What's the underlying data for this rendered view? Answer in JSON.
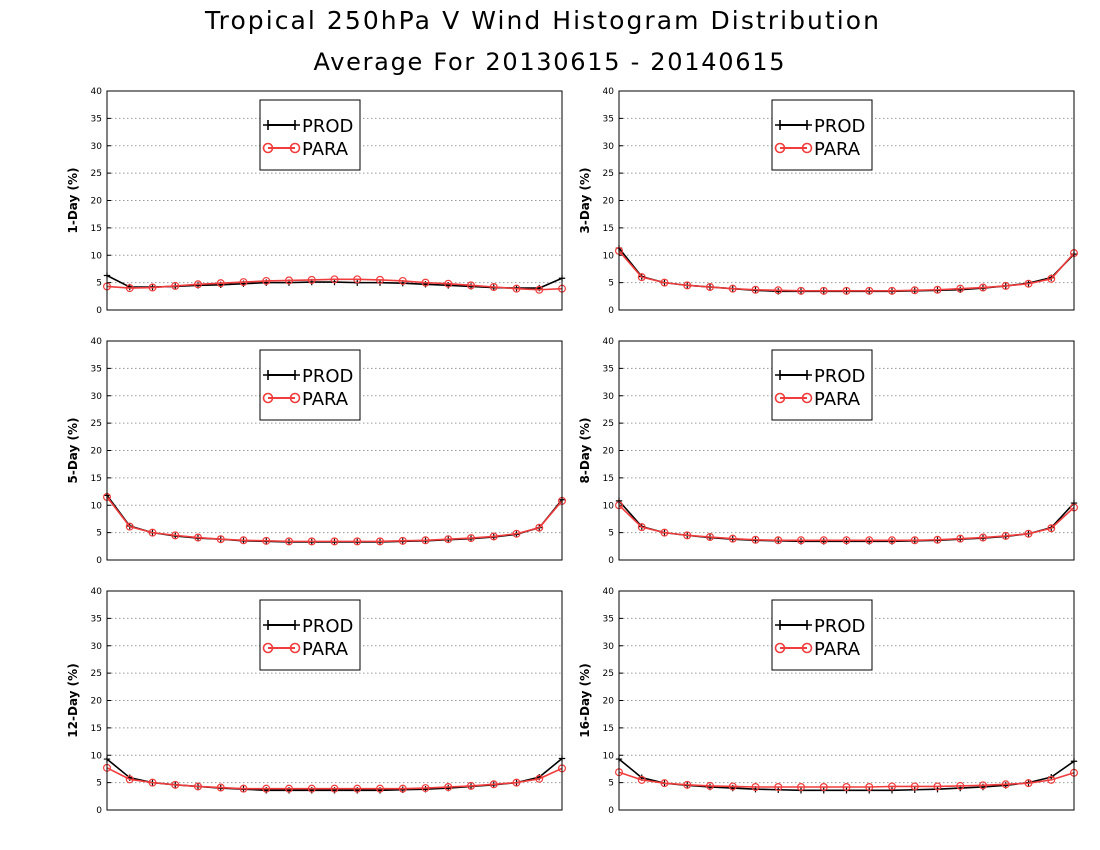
{
  "title": "Tropical 250hPa V Wind Histogram Distribution",
  "subtitle": "Average For 20130615 - 20140615",
  "colors": {
    "background": "#ffffff",
    "grid": "#9a9a9a",
    "frame": "#000000"
  },
  "chart_data": [
    {
      "type": "line",
      "ylabel": "1-Day (%)",
      "ylim": [
        0,
        40
      ],
      "yticks": [
        0,
        5,
        10,
        15,
        20,
        25,
        30,
        35,
        40
      ],
      "grid": true,
      "legend": "top-center",
      "series": [
        {
          "name": "PROD",
          "color": "#000000",
          "marker": "plus",
          "values": [
            6.3,
            4.2,
            4.2,
            4.3,
            4.5,
            4.6,
            4.8,
            5.0,
            5.0,
            5.1,
            5.1,
            5.0,
            5.0,
            4.9,
            4.7,
            4.5,
            4.3,
            4.1,
            4.0,
            4.0,
            5.8
          ]
        },
        {
          "name": "PARA",
          "color": "#f03c3c",
          "marker": "circle",
          "values": [
            4.3,
            4.0,
            4.1,
            4.4,
            4.7,
            4.9,
            5.1,
            5.3,
            5.4,
            5.5,
            5.6,
            5.6,
            5.5,
            5.3,
            5.0,
            4.8,
            4.5,
            4.2,
            3.9,
            3.7,
            3.9
          ]
        }
      ]
    },
    {
      "type": "line",
      "ylabel": "3-Day (%)",
      "ylim": [
        0,
        40
      ],
      "yticks": [
        0,
        5,
        10,
        15,
        20,
        25,
        30,
        35,
        40
      ],
      "grid": true,
      "legend": "top-center",
      "series": [
        {
          "name": "PROD",
          "color": "#000000",
          "marker": "plus",
          "values": [
            11.3,
            6.1,
            5.0,
            4.5,
            4.2,
            3.9,
            3.6,
            3.4,
            3.4,
            3.4,
            3.4,
            3.4,
            3.4,
            3.5,
            3.6,
            3.7,
            4.0,
            4.4,
            4.9,
            5.9,
            10.2
          ]
        },
        {
          "name": "PARA",
          "color": "#f03c3c",
          "marker": "circle",
          "values": [
            10.8,
            6.0,
            5.0,
            4.5,
            4.2,
            3.9,
            3.7,
            3.6,
            3.5,
            3.5,
            3.5,
            3.5,
            3.5,
            3.6,
            3.7,
            3.9,
            4.1,
            4.4,
            4.8,
            5.7,
            10.4
          ]
        }
      ]
    },
    {
      "type": "line",
      "ylabel": "5-Day (%)",
      "ylim": [
        0,
        40
      ],
      "yticks": [
        0,
        5,
        10,
        15,
        20,
        25,
        30,
        35,
        40
      ],
      "grid": true,
      "legend": "top-center",
      "series": [
        {
          "name": "PROD",
          "color": "#000000",
          "marker": "plus",
          "values": [
            11.8,
            6.2,
            5.0,
            4.4,
            4.0,
            3.8,
            3.5,
            3.4,
            3.3,
            3.3,
            3.3,
            3.3,
            3.3,
            3.4,
            3.5,
            3.7,
            3.9,
            4.2,
            4.7,
            5.9,
            11.0
          ]
        },
        {
          "name": "PARA",
          "color": "#f03c3c",
          "marker": "circle",
          "values": [
            11.5,
            6.1,
            5.0,
            4.5,
            4.1,
            3.8,
            3.6,
            3.5,
            3.4,
            3.4,
            3.4,
            3.4,
            3.4,
            3.5,
            3.6,
            3.8,
            4.0,
            4.3,
            4.8,
            5.9,
            10.8
          ]
        }
      ]
    },
    {
      "type": "line",
      "ylabel": "8-Day (%)",
      "ylim": [
        0,
        40
      ],
      "yticks": [
        0,
        5,
        10,
        15,
        20,
        25,
        30,
        35,
        40
      ],
      "grid": true,
      "legend": "top-center",
      "series": [
        {
          "name": "PROD",
          "color": "#000000",
          "marker": "plus",
          "values": [
            10.8,
            6.1,
            5.0,
            4.5,
            4.1,
            3.8,
            3.6,
            3.5,
            3.4,
            3.4,
            3.4,
            3.4,
            3.4,
            3.5,
            3.6,
            3.8,
            4.0,
            4.3,
            4.8,
            5.9,
            10.4
          ]
        },
        {
          "name": "PARA",
          "color": "#f03c3c",
          "marker": "circle",
          "values": [
            10.0,
            6.0,
            5.0,
            4.5,
            4.2,
            3.9,
            3.7,
            3.6,
            3.6,
            3.6,
            3.6,
            3.6,
            3.6,
            3.6,
            3.7,
            3.9,
            4.1,
            4.4,
            4.8,
            5.8,
            9.6
          ]
        }
      ]
    },
    {
      "type": "line",
      "ylabel": "12-Day (%)",
      "ylim": [
        0,
        40
      ],
      "yticks": [
        0,
        5,
        10,
        15,
        20,
        25,
        30,
        35,
        40
      ],
      "grid": true,
      "legend": "top-center",
      "series": [
        {
          "name": "PROD",
          "color": "#000000",
          "marker": "plus",
          "values": [
            9.3,
            5.9,
            5.0,
            4.6,
            4.3,
            4.0,
            3.8,
            3.6,
            3.6,
            3.6,
            3.6,
            3.6,
            3.6,
            3.7,
            3.8,
            4.0,
            4.3,
            4.6,
            5.0,
            6.0,
            9.4
          ]
        },
        {
          "name": "PARA",
          "color": "#f03c3c",
          "marker": "circle",
          "values": [
            7.7,
            5.6,
            5.0,
            4.6,
            4.3,
            4.1,
            3.9,
            3.9,
            3.9,
            3.9,
            3.9,
            3.9,
            3.9,
            3.9,
            4.0,
            4.2,
            4.4,
            4.7,
            5.0,
            5.7,
            7.6
          ]
        }
      ]
    },
    {
      "type": "line",
      "ylabel": "16-Day (%)",
      "ylim": [
        0,
        40
      ],
      "yticks": [
        0,
        5,
        10,
        15,
        20,
        25,
        30,
        35,
        40
      ],
      "grid": true,
      "legend": "top-center",
      "series": [
        {
          "name": "PROD",
          "color": "#000000",
          "marker": "plus",
          "values": [
            9.3,
            5.9,
            4.9,
            4.5,
            4.2,
            4.0,
            3.8,
            3.7,
            3.6,
            3.6,
            3.6,
            3.6,
            3.6,
            3.7,
            3.8,
            4.0,
            4.2,
            4.5,
            5.0,
            6.0,
            8.9
          ]
        },
        {
          "name": "PARA",
          "color": "#f03c3c",
          "marker": "circle",
          "values": [
            6.9,
            5.5,
            4.9,
            4.6,
            4.4,
            4.3,
            4.2,
            4.2,
            4.2,
            4.2,
            4.2,
            4.2,
            4.3,
            4.3,
            4.3,
            4.4,
            4.5,
            4.7,
            4.9,
            5.5,
            6.8
          ]
        }
      ]
    }
  ]
}
